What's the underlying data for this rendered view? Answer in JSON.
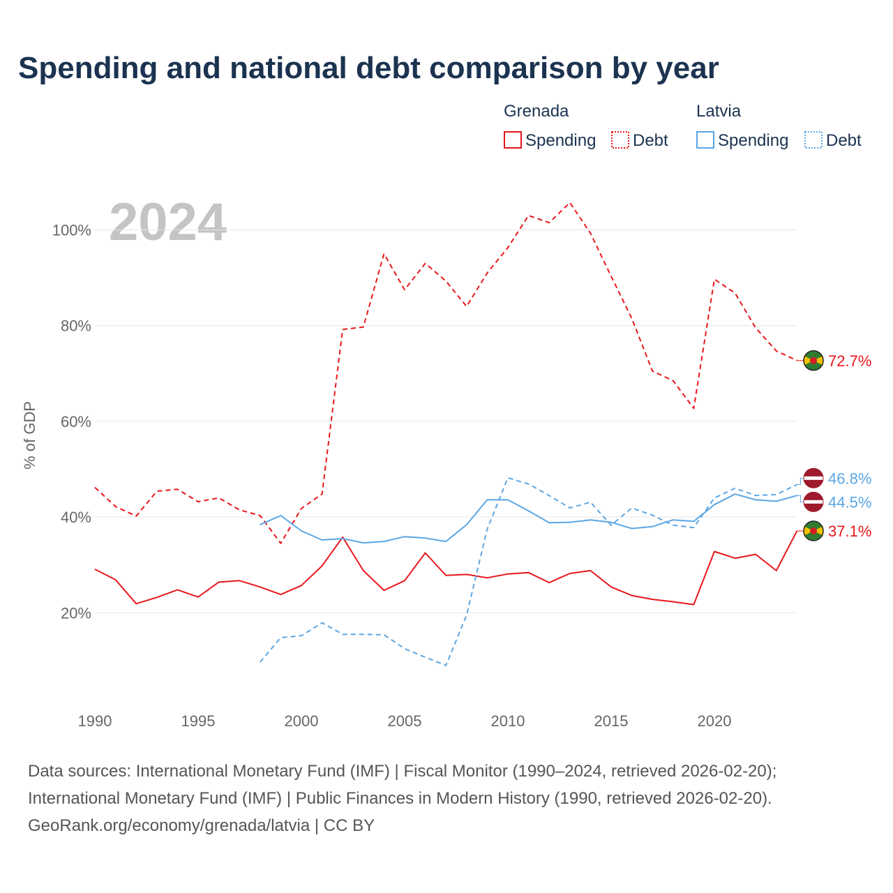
{
  "title": "Spending and national debt comparison by year",
  "year_label": "2024",
  "colors": {
    "grenada": "#e8161b",
    "latvia": "#5ba6e4",
    "title": "#1b3350",
    "axis": "#666666"
  },
  "legend": {
    "groups": [
      {
        "name": "Grenada",
        "items": [
          {
            "label": "Spending",
            "style": "solid"
          },
          {
            "label": "Debt",
            "style": "dotted"
          }
        ]
      },
      {
        "name": "Latvia",
        "items": [
          {
            "label": "Spending",
            "style": "solid"
          },
          {
            "label": "Debt",
            "style": "dotted"
          }
        ]
      }
    ]
  },
  "sources": [
    "Data sources: International Monetary Fund (IMF) | Fiscal Monitor (1990–2024, retrieved 2026-02-20);",
    "International Monetary Fund (IMF) | Public Finances in Modern History (1990, retrieved 2026-02-20).",
    "GeoRank.org/economy/grenada/latvia | CC BY"
  ],
  "chart_data": {
    "type": "line",
    "title": "Spending and national debt comparison by year",
    "xlabel": "",
    "ylabel": "% of GDP",
    "xlim": [
      1990,
      2024
    ],
    "ylim": [
      0,
      110
    ],
    "x_ticks": [
      1990,
      1995,
      2000,
      2005,
      2010,
      2015,
      2020
    ],
    "y_ticks": [
      20,
      40,
      60,
      80,
      100
    ],
    "y_tick_labels": [
      "20%",
      "40%",
      "60%",
      "80%",
      "100%"
    ],
    "grid": true,
    "series": [
      {
        "name": "Grenada Debt",
        "country": "grenada",
        "dash": true,
        "points": [
          [
            1990,
            46.2
          ],
          [
            1991,
            42.2
          ],
          [
            1992,
            40.2
          ],
          [
            1993,
            45.4
          ],
          [
            1994,
            45.8
          ],
          [
            1995,
            43.2
          ],
          [
            1996,
            44.0
          ],
          [
            1997,
            41.5
          ],
          [
            1998,
            40.3
          ],
          [
            1999,
            34.5
          ],
          [
            2000,
            41.8
          ],
          [
            2001,
            44.8
          ],
          [
            2002,
            79.2
          ],
          [
            2003,
            79.7
          ],
          [
            2004,
            95.0
          ],
          [
            2005,
            87.5
          ],
          [
            2006,
            93.0
          ],
          [
            2007,
            89.3
          ],
          [
            2008,
            84.0
          ],
          [
            2009,
            91.0
          ],
          [
            2010,
            96.3
          ],
          [
            2011,
            103.0
          ],
          [
            2012,
            101.5
          ],
          [
            2013,
            105.7
          ],
          [
            2014,
            99.3
          ],
          [
            2015,
            90.3
          ],
          [
            2016,
            81.5
          ],
          [
            2017,
            70.5
          ],
          [
            2018,
            68.5
          ],
          [
            2019,
            62.7
          ],
          [
            2020,
            89.7
          ],
          [
            2021,
            86.8
          ],
          [
            2022,
            79.5
          ],
          [
            2023,
            74.7
          ],
          [
            2024,
            72.7
          ]
        ],
        "end_label": "72.7%"
      },
      {
        "name": "Grenada Spending",
        "country": "grenada",
        "dash": false,
        "points": [
          [
            1990,
            29.1
          ],
          [
            1991,
            26.9
          ],
          [
            1992,
            21.9
          ],
          [
            1993,
            23.2
          ],
          [
            1994,
            24.8
          ],
          [
            1995,
            23.3
          ],
          [
            1996,
            26.4
          ],
          [
            1997,
            26.7
          ],
          [
            1998,
            25.4
          ],
          [
            1999,
            23.8
          ],
          [
            2000,
            25.7
          ],
          [
            2001,
            29.8
          ],
          [
            2002,
            35.8
          ],
          [
            2003,
            28.8
          ],
          [
            2004,
            24.7
          ],
          [
            2005,
            26.7
          ],
          [
            2006,
            32.5
          ],
          [
            2007,
            27.8
          ],
          [
            2008,
            28.0
          ],
          [
            2009,
            27.3
          ],
          [
            2010,
            28.1
          ],
          [
            2011,
            28.4
          ],
          [
            2012,
            26.3
          ],
          [
            2013,
            28.2
          ],
          [
            2014,
            28.8
          ],
          [
            2015,
            25.4
          ],
          [
            2016,
            23.6
          ],
          [
            2017,
            22.8
          ],
          [
            2018,
            22.3
          ],
          [
            2019,
            21.7
          ],
          [
            2020,
            32.8
          ],
          [
            2021,
            31.4
          ],
          [
            2022,
            32.2
          ],
          [
            2023,
            28.8
          ],
          [
            2024,
            37.1
          ]
        ],
        "end_label": "37.1%"
      },
      {
        "name": "Latvia Debt",
        "country": "latvia",
        "dash": true,
        "points": [
          [
            1998,
            9.7
          ],
          [
            1999,
            14.8
          ],
          [
            2000,
            15.2
          ],
          [
            2001,
            17.9
          ],
          [
            2002,
            15.5
          ],
          [
            2003,
            15.5
          ],
          [
            2004,
            15.4
          ],
          [
            2005,
            12.5
          ],
          [
            2006,
            10.7
          ],
          [
            2007,
            9.0
          ],
          [
            2008,
            19.5
          ],
          [
            2009,
            37.5
          ],
          [
            2010,
            48.2
          ],
          [
            2011,
            46.9
          ],
          [
            2012,
            44.5
          ],
          [
            2013,
            41.9
          ],
          [
            2014,
            43.1
          ],
          [
            2015,
            38.3
          ],
          [
            2016,
            41.9
          ],
          [
            2017,
            40.4
          ],
          [
            2018,
            38.3
          ],
          [
            2019,
            37.8
          ],
          [
            2020,
            44.0
          ],
          [
            2021,
            46.0
          ],
          [
            2022,
            44.5
          ],
          [
            2023,
            44.7
          ],
          [
            2024,
            46.8
          ]
        ],
        "end_label": "46.8%"
      },
      {
        "name": "Latvia Spending",
        "country": "latvia",
        "dash": false,
        "points": [
          [
            1998,
            38.4
          ],
          [
            1999,
            40.3
          ],
          [
            2000,
            37.1
          ],
          [
            2001,
            35.2
          ],
          [
            2002,
            35.5
          ],
          [
            2003,
            34.6
          ],
          [
            2004,
            34.9
          ],
          [
            2005,
            35.9
          ],
          [
            2006,
            35.6
          ],
          [
            2007,
            34.9
          ],
          [
            2008,
            38.4
          ],
          [
            2009,
            43.6
          ],
          [
            2010,
            43.6
          ],
          [
            2011,
            41.3
          ],
          [
            2012,
            38.8
          ],
          [
            2013,
            38.9
          ],
          [
            2014,
            39.4
          ],
          [
            2015,
            38.9
          ],
          [
            2016,
            37.6
          ],
          [
            2017,
            38.0
          ],
          [
            2018,
            39.4
          ],
          [
            2019,
            39.1
          ],
          [
            2020,
            42.6
          ],
          [
            2021,
            44.8
          ],
          [
            2022,
            43.6
          ],
          [
            2023,
            43.3
          ],
          [
            2024,
            44.5
          ]
        ],
        "end_label": "44.5%"
      }
    ]
  }
}
